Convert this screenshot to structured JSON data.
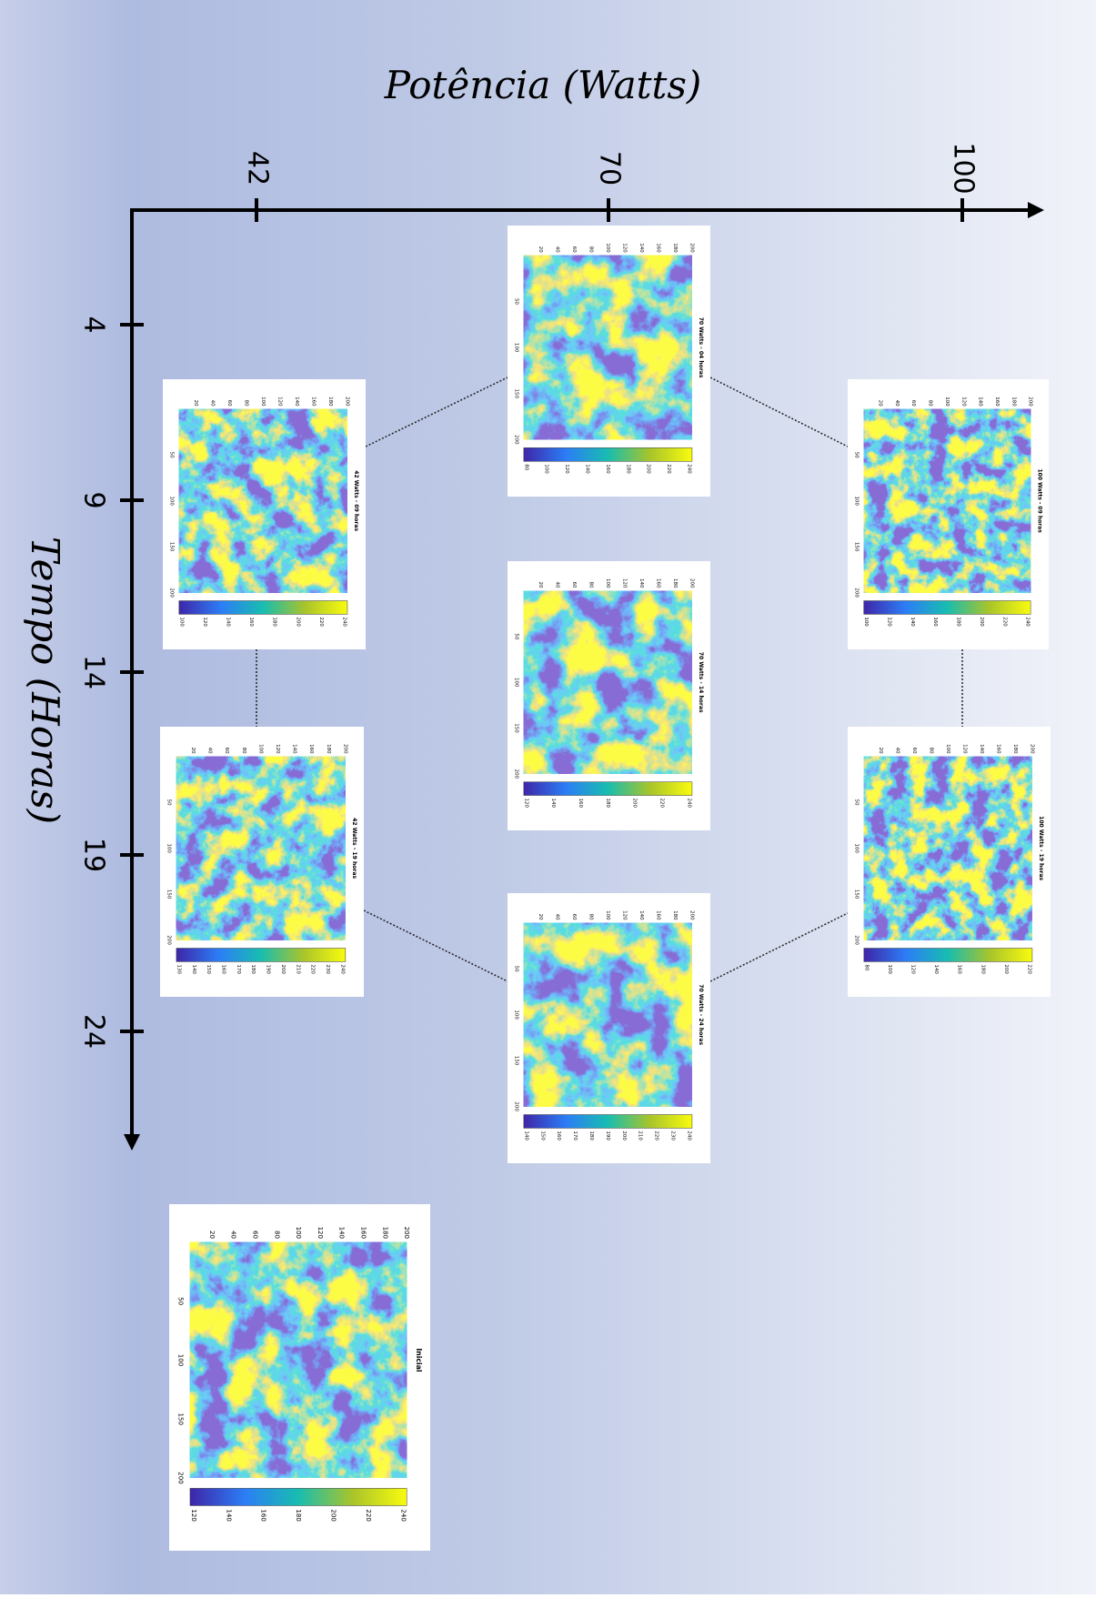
{
  "axes": {
    "x_title": "Potência (Watts)",
    "x_ticks": [
      "42",
      "70",
      "100"
    ],
    "y_title": "Tempo (Horas)",
    "y_ticks": [
      "4",
      "9",
      "14",
      "19",
      "24"
    ]
  },
  "panels": [
    {
      "title": "70 Watts - 04 horas",
      "row_ticks": [
        20,
        40,
        60,
        80,
        100,
        120,
        140,
        160,
        180,
        200
      ],
      "col_ticks": [
        50,
        100,
        150,
        200
      ],
      "colorbar_ticks": [
        80,
        100,
        120,
        140,
        160,
        180,
        200,
        220,
        240
      ]
    },
    {
      "title": "42 Watts - 09 horas",
      "row_ticks": [
        20,
        40,
        60,
        80,
        100,
        120,
        140,
        160,
        180,
        200
      ],
      "col_ticks": [
        50,
        100,
        150,
        200
      ],
      "colorbar_ticks": [
        100,
        120,
        140,
        160,
        180,
        200,
        220,
        240
      ]
    },
    {
      "title": "100 Watts - 09 horas",
      "row_ticks": [
        20,
        40,
        60,
        80,
        100,
        120,
        140,
        160,
        180,
        200
      ],
      "col_ticks": [
        50,
        100,
        150,
        200
      ],
      "colorbar_ticks": [
        100,
        120,
        140,
        160,
        180,
        200,
        220,
        240
      ]
    },
    {
      "title": "70 Watts - 14 horas",
      "row_ticks": [
        20,
        40,
        60,
        80,
        100,
        120,
        140,
        160,
        180,
        200
      ],
      "col_ticks": [
        50,
        100,
        150,
        200
      ],
      "colorbar_ticks": [
        120,
        140,
        160,
        180,
        200,
        220,
        240
      ]
    },
    {
      "title": "42 Watts - 19 horas",
      "row_ticks": [
        20,
        40,
        60,
        80,
        100,
        120,
        140,
        160,
        180,
        200
      ],
      "col_ticks": [
        50,
        100,
        150,
        200
      ],
      "colorbar_ticks": [
        130,
        140,
        150,
        160,
        170,
        180,
        190,
        200,
        210,
        220,
        230,
        240
      ]
    },
    {
      "title": "100 Watts - 19 horas",
      "row_ticks": [
        20,
        40,
        60,
        80,
        100,
        120,
        140,
        160,
        180,
        200
      ],
      "col_ticks": [
        50,
        100,
        150,
        200
      ],
      "colorbar_ticks": [
        80,
        100,
        120,
        140,
        160,
        180,
        200,
        220
      ]
    },
    {
      "title": "70 Watts - 24 horas",
      "row_ticks": [
        20,
        40,
        60,
        80,
        100,
        120,
        140,
        160,
        180,
        200
      ],
      "col_ticks": [
        50,
        100,
        150,
        200
      ],
      "colorbar_ticks": [
        140,
        150,
        160,
        170,
        180,
        190,
        200,
        210,
        220,
        230,
        240
      ]
    },
    {
      "title": "Inicial",
      "row_ticks": [
        20,
        40,
        60,
        80,
        100,
        120,
        140,
        160,
        180,
        200
      ],
      "col_ticks": [
        50,
        100,
        150,
        200
      ],
      "colorbar_ticks": [
        120,
        140,
        160,
        180,
        200,
        220,
        240
      ]
    }
  ]
}
